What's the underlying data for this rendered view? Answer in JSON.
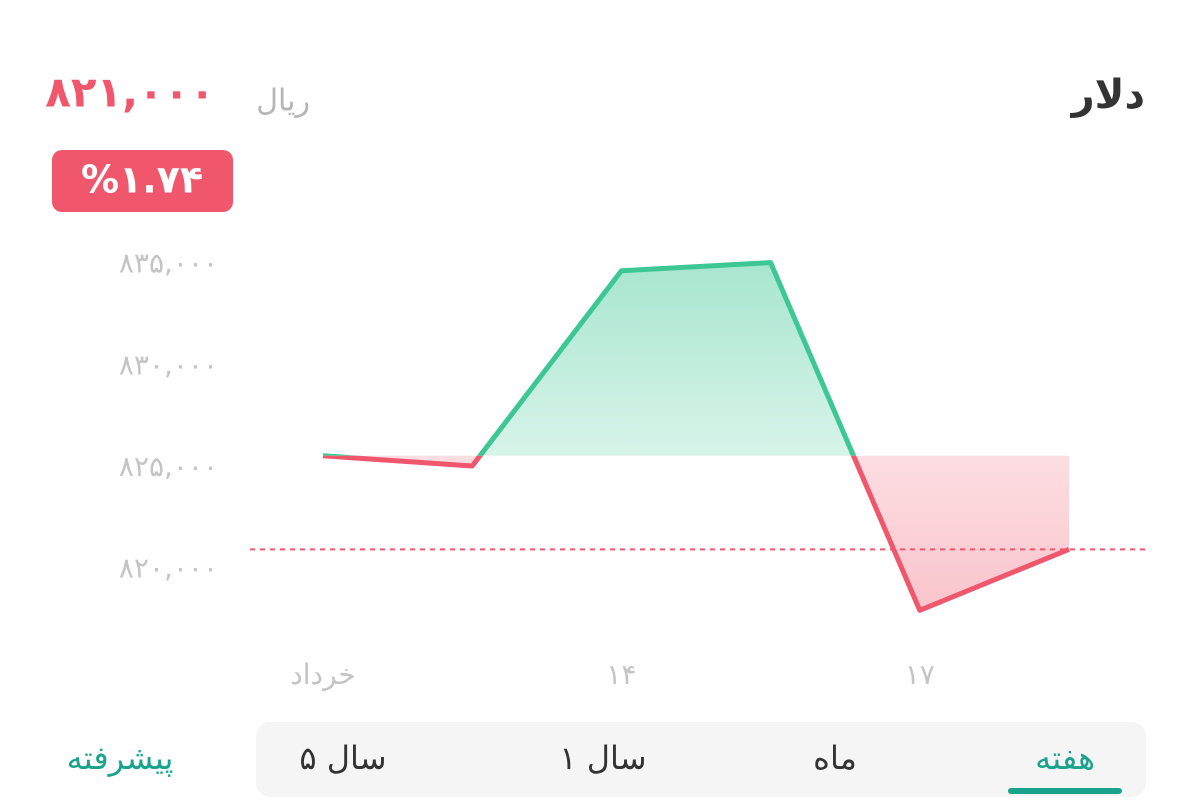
{
  "header": {
    "title": "دلار",
    "currency": "ریال",
    "price": {
      "value": 821000,
      "label": "۸۲۱,۰۰۰"
    },
    "change": "%۱.۷۴"
  },
  "chart_data": {
    "type": "line",
    "categories": [
      "خرداد",
      null,
      "۱۴",
      null,
      "۱۷",
      null
    ],
    "values": [
      825600,
      825100,
      834700,
      835100,
      818000,
      821000
    ],
    "up_color": "#3cc795",
    "down_color": "#f0566c",
    "ylim": [
      816000,
      837000
    ],
    "yticks": [
      {
        "value": 820000,
        "label": "۸۲۰,۰۰۰"
      },
      {
        "value": 825000,
        "label": "۸۲۵,۰۰۰"
      },
      {
        "value": 830000,
        "label": "۸۳۰,۰۰۰"
      },
      {
        "value": 835000,
        "label": "۸۳۵,۰۰۰"
      }
    ]
  },
  "tabs": {
    "items": [
      "هفته",
      "ماه",
      "۱ سال",
      "۵ سال"
    ],
    "active": 0
  },
  "advanced": "پیشرفته"
}
